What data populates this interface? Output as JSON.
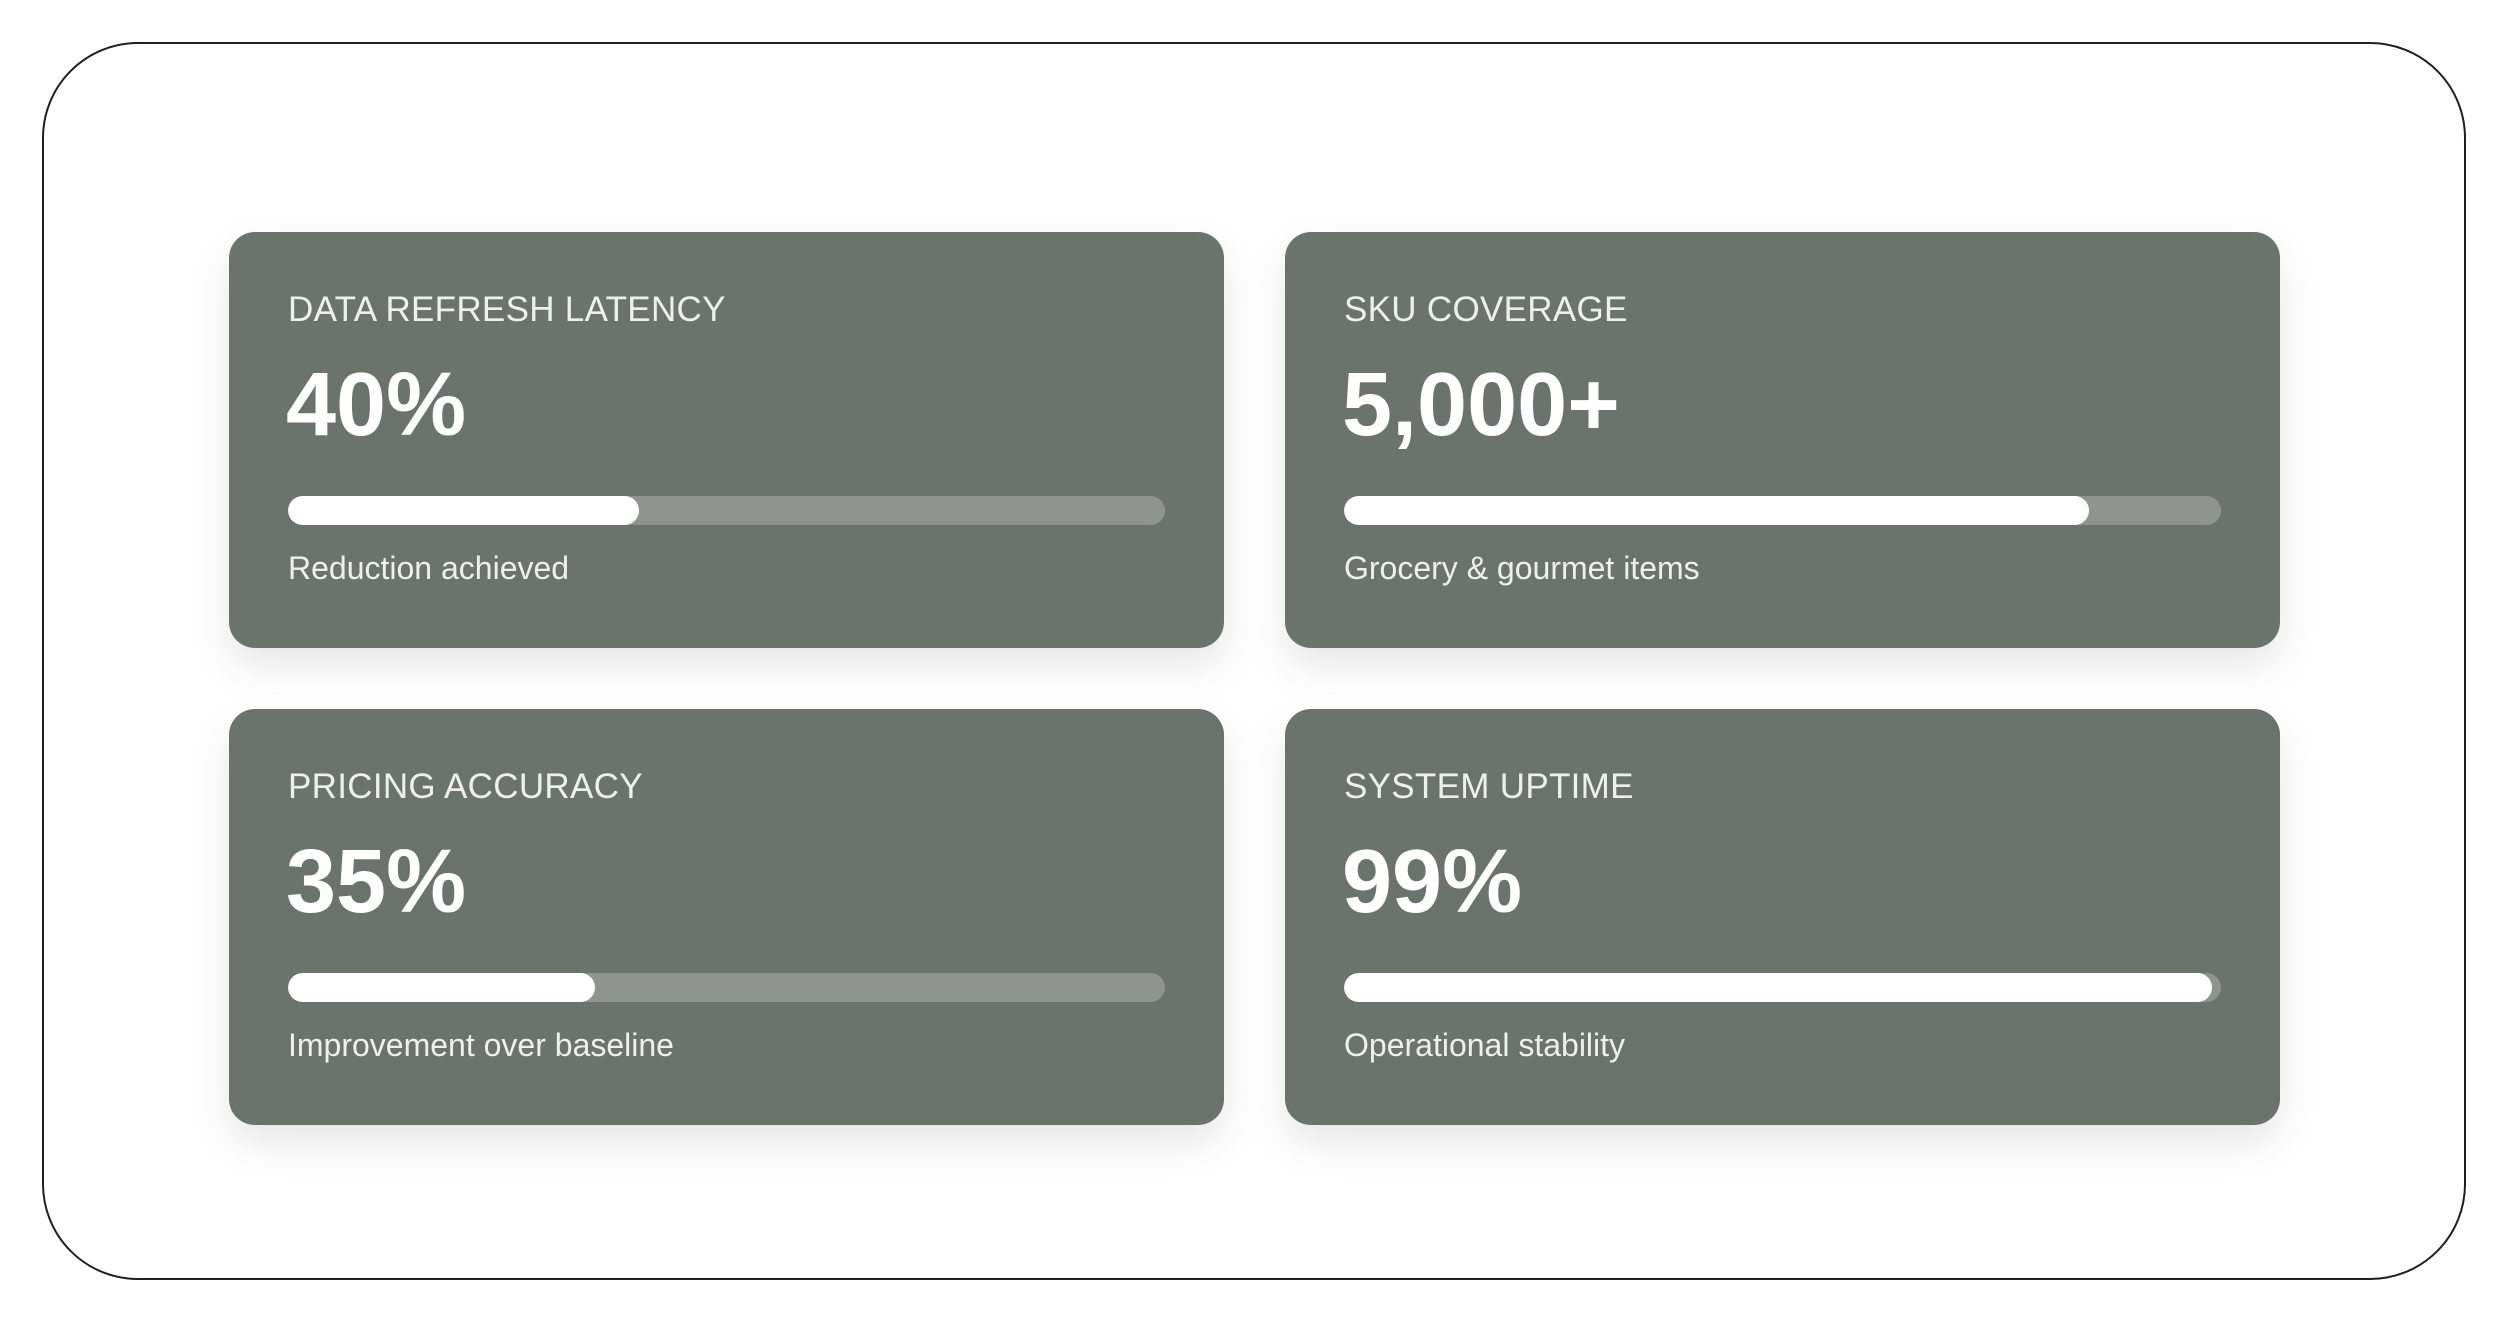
{
  "colors": {
    "card": "#6c736c",
    "track": "#8f948f",
    "fill": "#ffffff"
  },
  "cards": [
    {
      "label": "DATA REFRESH LATENCY",
      "value": "40%",
      "progress": 40,
      "description": "Reduction achieved"
    },
    {
      "label": "SKU COVERAGE",
      "value": "5,000+",
      "progress": 85,
      "description": "Grocery & gourmet items"
    },
    {
      "label": "PRICING ACCURACY",
      "value": "35%",
      "progress": 35,
      "description": "Improvement over baseline"
    },
    {
      "label": "SYSTEM UPTIME",
      "value": "99%",
      "progress": 99,
      "description": "Operational stability"
    }
  ]
}
